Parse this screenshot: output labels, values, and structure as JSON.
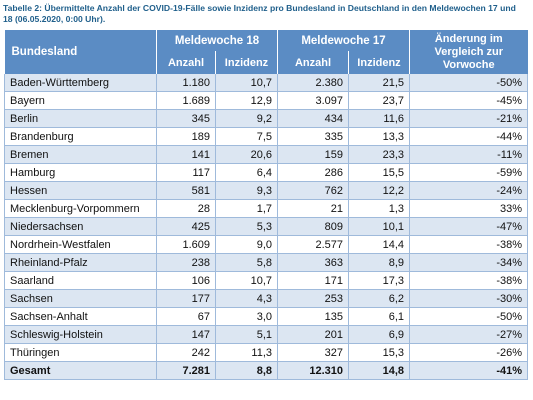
{
  "caption": "Tabelle 2: Übermittelte Anzahl der COVID-19-Fälle sowie Inzidenz pro Bundesland in Deutschland in den Meldewochen 17 und 18 (06.05.2020, 0:00 Uhr).",
  "headers": {
    "state": "Bundesland",
    "week18": "Meldewoche 18",
    "week17": "Meldewoche 17",
    "change": "Änderung im Vergleich zur Vorwoche",
    "count": "Anzahl",
    "incidence": "Inzidenz"
  },
  "rows": [
    {
      "state": "Baden-Württemberg",
      "w18_count": "1.180",
      "w18_inc": "10,7",
      "w17_count": "2.380",
      "w17_inc": "21,5",
      "change": "-50%"
    },
    {
      "state": "Bayern",
      "w18_count": "1.689",
      "w18_inc": "12,9",
      "w17_count": "3.097",
      "w17_inc": "23,7",
      "change": "-45%"
    },
    {
      "state": "Berlin",
      "w18_count": "345",
      "w18_inc": "9,2",
      "w17_count": "434",
      "w17_inc": "11,6",
      "change": "-21%"
    },
    {
      "state": "Brandenburg",
      "w18_count": "189",
      "w18_inc": "7,5",
      "w17_count": "335",
      "w17_inc": "13,3",
      "change": "-44%"
    },
    {
      "state": "Bremen",
      "w18_count": "141",
      "w18_inc": "20,6",
      "w17_count": "159",
      "w17_inc": "23,3",
      "change": "-11%"
    },
    {
      "state": "Hamburg",
      "w18_count": "117",
      "w18_inc": "6,4",
      "w17_count": "286",
      "w17_inc": "15,5",
      "change": "-59%"
    },
    {
      "state": "Hessen",
      "w18_count": "581",
      "w18_inc": "9,3",
      "w17_count": "762",
      "w17_inc": "12,2",
      "change": "-24%"
    },
    {
      "state": "Mecklenburg-Vorpommern",
      "w18_count": "28",
      "w18_inc": "1,7",
      "w17_count": "21",
      "w17_inc": "1,3",
      "change": "33%"
    },
    {
      "state": "Niedersachsen",
      "w18_count": "425",
      "w18_inc": "5,3",
      "w17_count": "809",
      "w17_inc": "10,1",
      "change": "-47%"
    },
    {
      "state": "Nordrhein-Westfalen",
      "w18_count": "1.609",
      "w18_inc": "9,0",
      "w17_count": "2.577",
      "w17_inc": "14,4",
      "change": "-38%"
    },
    {
      "state": "Rheinland-Pfalz",
      "w18_count": "238",
      "w18_inc": "5,8",
      "w17_count": "363",
      "w17_inc": "8,9",
      "change": "-34%"
    },
    {
      "state": "Saarland",
      "w18_count": "106",
      "w18_inc": "10,7",
      "w17_count": "171",
      "w17_inc": "17,3",
      "change": "-38%"
    },
    {
      "state": "Sachsen",
      "w18_count": "177",
      "w18_inc": "4,3",
      "w17_count": "253",
      "w17_inc": "6,2",
      "change": "-30%"
    },
    {
      "state": "Sachsen-Anhalt",
      "w18_count": "67",
      "w18_inc": "3,0",
      "w17_count": "135",
      "w17_inc": "6,1",
      "change": "-50%"
    },
    {
      "state": "Schleswig-Holstein",
      "w18_count": "147",
      "w18_inc": "5,1",
      "w17_count": "201",
      "w17_inc": "6,9",
      "change": "-27%"
    },
    {
      "state": "Thüringen",
      "w18_count": "242",
      "w18_inc": "11,3",
      "w17_count": "327",
      "w17_inc": "15,3",
      "change": "-26%"
    }
  ],
  "total": {
    "state": "Gesamt",
    "w18_count": "7.281",
    "w18_inc": "8,8",
    "w17_count": "12.310",
    "w17_inc": "14,8",
    "change": "-41%"
  },
  "colors": {
    "header_bg": "#5b8cc4",
    "stripe": "#dce6f2",
    "caption": "#1f5f8b"
  }
}
